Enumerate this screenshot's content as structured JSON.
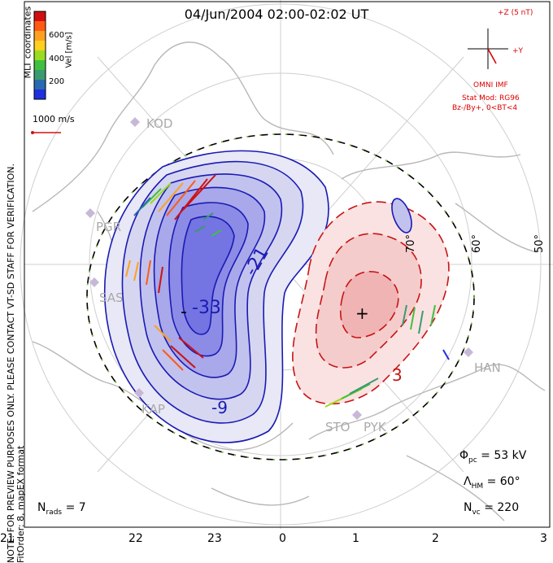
{
  "title": "04/Jun/2004 02:00-02:02 UT",
  "side_note": "NOTE: FOR PREVIEW PURPOSES ONLY. PLEASE CONTACT VT-SD STAFF FOR VERIFICATION.",
  "fit_order": "FitOrder: 8, mapEX format",
  "coord_label": "MLT coordinates",
  "colorbar": {
    "title": "Vel [m/s]",
    "ticks": [
      "600",
      "400",
      "200"
    ],
    "colors": [
      "#d01010",
      "#ff5a14",
      "#ffa020",
      "#ffd020",
      "#9adc20",
      "#40c040",
      "#3a9a70",
      "#2a6ab0",
      "#1e30e0"
    ]
  },
  "scale_vector": "1000 m/s",
  "imf": {
    "z_label": "+Z (5 nT)",
    "y_label": "+Y",
    "source": "OMNI IMF",
    "model": "Stat Mod: RG96",
    "condition": "Bz-/By+, 0<BT<4"
  },
  "stats": {
    "phi_pc": "= 53 kV",
    "lambda_hm": "= 60°",
    "n_vc": "= 220",
    "n_rads": "= 7"
  },
  "mlt_ticks": [
    "21",
    "22",
    "23",
    "0",
    "1",
    "2",
    "3"
  ],
  "lat_labels": [
    "70°",
    "60°",
    "50°"
  ],
  "contour_labels": [
    "-33",
    "-21",
    "-9",
    "3"
  ],
  "stations": [
    "KOD",
    "PGR",
    "SAS",
    "KAP",
    "STO",
    "PYK",
    "HAN"
  ],
  "colors": {
    "dusk_cell": "#1a1ab4",
    "dawn_cell": "#c81414",
    "map": "#b8b8b8",
    "grid": "#c8c8c8",
    "imf_text": "#dd0000"
  },
  "potential_extremes": {
    "min_symbol": "-",
    "max_symbol": "+"
  }
}
